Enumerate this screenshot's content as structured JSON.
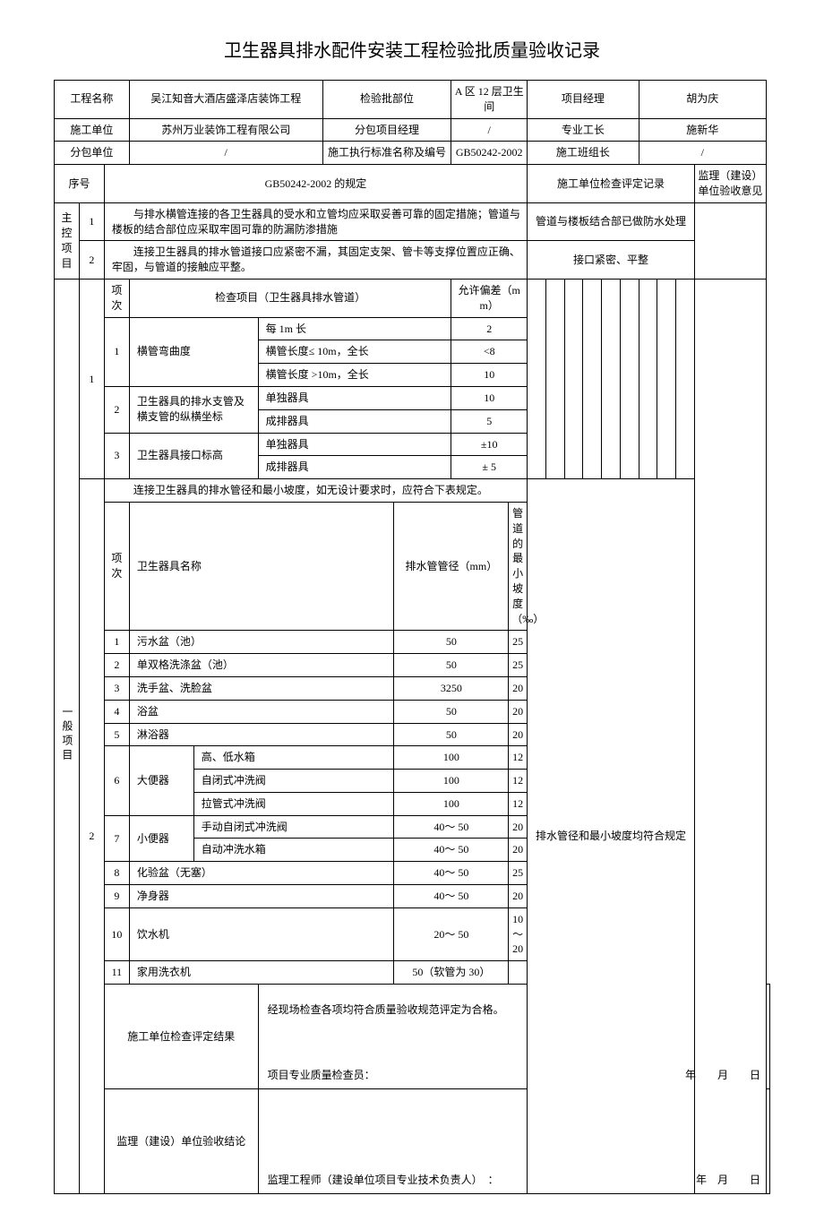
{
  "title": "卫生器具排水配件安装工程检验批质量验收记录",
  "hdr": {
    "l1": "工程名称",
    "v1": "吴江知音大酒店盛泽店装饰工程",
    "l2": "检验批部位",
    "v2": "A 区 12 层卫生间",
    "l3": "项目经理",
    "v3": "胡为庆",
    "l4": "施工单位",
    "v4": "苏州万业装饰工程有限公司",
    "l5": "分包项目经理",
    "v5": "/",
    "l6": "专业工长",
    "v6": "施新华",
    "l7": "分包单位",
    "v7": "/",
    "l8": "施工执行标准名称及编号",
    "v8": "GB50242-2002",
    "l9": "施工班组长",
    "v9": "/"
  },
  "colhdr": {
    "seq": "序号",
    "rule": "GB50242-2002 的规定",
    "rec": "施工单位检查评定记录",
    "sup": "监理（建设）单位验收意见"
  },
  "main": {
    "label": "主控项目",
    "r1n": "1",
    "r1t": "　　与排水横管连接的各卫生器具的受水和立管均应采取妥善可靠的固定措施；管道与楼板的结合部位应采取牢固可靠的防漏防渗措施",
    "r1rec": "管道与楼板结合部已做防水处理",
    "r2n": "2",
    "r2t": "　　连接卫生器具的排水管道接口应紧密不漏，其固定支架、管卡等支撑位置应正确、牢固，与管道的接触应平整。",
    "r2rec": "接口紧密、平整"
  },
  "gen": {
    "label": "一般项目",
    "g1n": "1",
    "g2n": "2",
    "sub_hdr_item": "项次",
    "sub_hdr_name": "检查项目（卫生器具排水管道）",
    "sub_hdr_tol": "允许偏差（mm）",
    "s1": {
      "n": "1",
      "name": "横管弯曲度",
      "a": "每 1m 长",
      "av": "2",
      "b": "横管长度≤ 10m，全长",
      "bv": "<8",
      "c": "横管长度 >10m，全长",
      "cv": "10"
    },
    "s2": {
      "n": "2",
      "name": "卫生器具的排水支管及横支管的纵横坐标",
      "a": "单独器具",
      "av": "10",
      "b": "成排器具",
      "bv": "5"
    },
    "s3": {
      "n": "3",
      "name": "卫生器具接口标高",
      "a": "单独器具",
      "av": "±10",
      "b": "成排器具",
      "bv": "± 5"
    },
    "g2intro": "　　连接卫生器具的排水管径和最小坡度，如无设计要求时，应符合下表规定。",
    "g2cols": {
      "seq": "项次",
      "name": "卫生器具名称",
      "d": "排水管管径（mm）",
      "slope": "管道的最小坡度（‰）"
    },
    "g2rec": "排水管径和最小坡度均符合规定",
    "rows": [
      {
        "n": "1",
        "name": "污水盆（池）",
        "d": "50",
        "s": "25"
      },
      {
        "n": "2",
        "name": "单双格洗涤盆（池）",
        "d": "50",
        "s": "25"
      },
      {
        "n": "3",
        "name": "洗手盆、洗脸盆",
        "d": "3250",
        "s": "20"
      },
      {
        "n": "4",
        "name": "浴盆",
        "d": "50",
        "s": "20"
      },
      {
        "n": "5",
        "name": "淋浴器",
        "d": "50",
        "s": "20"
      }
    ],
    "r6": {
      "n": "6",
      "name": "大便器",
      "a": "高、低水箱",
      "ad": "100",
      "as": "12",
      "b": "自闭式冲洗阀",
      "bd": "100",
      "bs": "12",
      "c": "拉管式冲洗阀",
      "cd": "100",
      "cs": "12"
    },
    "r7": {
      "n": "7",
      "name": "小便器",
      "a": "手动自闭式冲洗阀",
      "ad": "40～ 50",
      "as": "20",
      "b": "自动冲洗水箱",
      "bd": "40～ 50",
      "bs": "20"
    },
    "rows2": [
      {
        "n": "8",
        "name": "化验盆（无塞）",
        "d": "40～ 50",
        "s": "25"
      },
      {
        "n": "9",
        "name": "净身器",
        "d": "40～ 50",
        "s": "20"
      },
      {
        "n": "10",
        "name": "饮水机",
        "d": "20～ 50",
        "s": "10～20"
      },
      {
        "n": "11",
        "name": "家用洗衣机",
        "d": "50（软管为 30）",
        "s": ""
      }
    ]
  },
  "sig": {
    "l1": "施工单位检查评定结果",
    "t1": "经现场检查各项均符合质量验收规范评定为合格。",
    "s1": "项目专业质量检查员：",
    "d1": "年　　月　　日",
    "l2": "监理（建设）单位验收结论",
    "s2": "监理工程师（建设单位项目专业技术负责人）　：",
    "d2": "年　月　　日"
  }
}
